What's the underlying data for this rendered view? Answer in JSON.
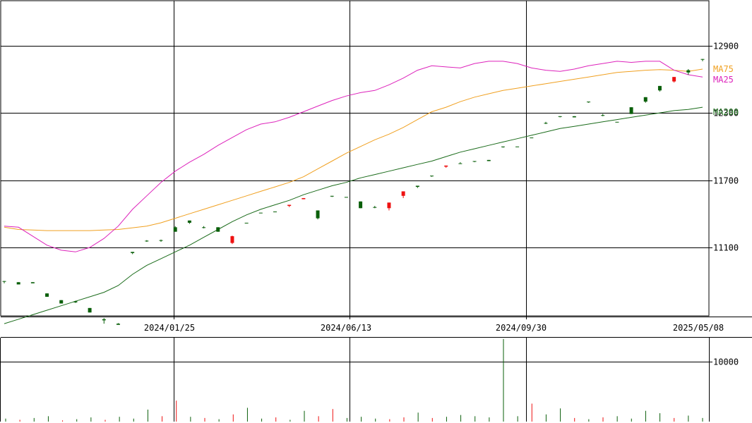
{
  "colors": {
    "up": "#0a5f0a",
    "down": "#ee1111",
    "ma25": "#dd22bb",
    "ma75": "#f0a020",
    "ma200": "#1a6b1a",
    "grid": "#000000"
  },
  "chart_data": {
    "type": "candlestick",
    "price_axis": {
      "ticks": [
        11100,
        11700,
        12300,
        12900
      ],
      "range": [
        10490,
        13300
      ]
    },
    "date_axis": {
      "ticks": [
        "2024/01/25",
        "2024/06/13",
        "2024/09/30",
        "2025/05/08"
      ]
    },
    "volume_axis": {
      "ticks": [
        10000
      ],
      "range": [
        0,
        14000
      ]
    },
    "legend": [
      {
        "key": "ma75",
        "label": "MA75"
      },
      {
        "key": "ma25",
        "label": "MA25"
      },
      {
        "key": "ma200",
        "label": "MA200"
      }
    ],
    "candles": [
      [
        10800,
        10800,
        10800,
        10780
      ],
      [
        10770,
        10790,
        10780,
        10790
      ],
      [
        10780,
        10790,
        10785,
        10790
      ],
      [
        10660,
        10690,
        10660,
        10690
      ],
      [
        10600,
        10630,
        10605,
        10630
      ],
      [
        10610,
        10620,
        10605,
        10625
      ],
      [
        10520,
        10560,
        10520,
        10560
      ],
      [
        10450,
        10460,
        10420,
        10470
      ],
      [
        10410,
        10420,
        10410,
        10425
      ],
      [
        11050,
        11060,
        11040,
        11060
      ],
      [
        11160,
        11160,
        11150,
        11165
      ],
      [
        11160,
        11165,
        11150,
        11170
      ],
      [
        11240,
        11280,
        11240,
        11290
      ],
      [
        11320,
        11340,
        11310,
        11340
      ],
      [
        11280,
        11280,
        11270,
        11290
      ],
      [
        11240,
        11280,
        11240,
        11280
      ],
      [
        11200,
        11140,
        11130,
        11205
      ],
      [
        11320,
        11320,
        11320,
        11320
      ],
      [
        11410,
        11410,
        11410,
        11410
      ],
      [
        11420,
        11420,
        11420,
        11420
      ],
      [
        11480,
        11470,
        11460,
        11480
      ],
      [
        11540,
        11530,
        11530,
        11540
      ],
      [
        11360,
        11430,
        11350,
        11430
      ],
      [
        11560,
        11560,
        11550,
        11560
      ],
      [
        11550,
        11550,
        11550,
        11550
      ],
      [
        11450,
        11510,
        11450,
        11510
      ],
      [
        11460,
        11460,
        11450,
        11470
      ],
      [
        11500,
        11450,
        11430,
        11500
      ],
      [
        11600,
        11560,
        11540,
        11600
      ],
      [
        11640,
        11650,
        11630,
        11650
      ],
      [
        11740,
        11740,
        11730,
        11740
      ],
      [
        11830,
        11820,
        11810,
        11830
      ],
      [
        11850,
        11850,
        11850,
        11860
      ],
      [
        11870,
        11870,
        11860,
        11870
      ],
      [
        11870,
        11880,
        11870,
        11880
      ],
      [
        12000,
        12000,
        11990,
        12000
      ],
      [
        12000,
        12000,
        12000,
        12000
      ],
      [
        12080,
        12080,
        12080,
        12080
      ],
      [
        12210,
        12210,
        12200,
        12220
      ],
      [
        12270,
        12270,
        12260,
        12270
      ],
      [
        12260,
        12270,
        12260,
        12270
      ],
      [
        12400,
        12400,
        12390,
        12400
      ],
      [
        12280,
        12280,
        12270,
        12290
      ],
      [
        12220,
        12220,
        12220,
        12220
      ],
      [
        12290,
        12350,
        12290,
        12350
      ],
      [
        12400,
        12440,
        12390,
        12440
      ],
      [
        12500,
        12540,
        12490,
        12540
      ],
      [
        12620,
        12580,
        12570,
        12620
      ],
      [
        12660,
        12680,
        12640,
        12690
      ],
      [
        12780,
        12780,
        12760,
        12780
      ]
    ],
    "ma25": [
      11290,
      11280,
      11200,
      11120,
      11075,
      11060,
      11100,
      11180,
      11290,
      11440,
      11560,
      11680,
      11780,
      11860,
      11930,
      12010,
      12080,
      12150,
      12200,
      12220,
      12260,
      12310,
      12360,
      12410,
      12450,
      12480,
      12500,
      12550,
      12610,
      12680,
      12720,
      12710,
      12700,
      12740,
      12760,
      12760,
      12740,
      12700,
      12680,
      12670,
      12690,
      12720,
      12740,
      12760,
      12750,
      12760,
      12760,
      12680,
      12640,
      12620
    ],
    "ma75": [
      11280,
      11260,
      11255,
      11250,
      11250,
      11250,
      11250,
      11255,
      11260,
      11275,
      11290,
      11320,
      11360,
      11400,
      11440,
      11480,
      11520,
      11560,
      11600,
      11640,
      11680,
      11730,
      11800,
      11870,
      11940,
      12000,
      12060,
      12110,
      12170,
      12240,
      12310,
      12350,
      12400,
      12440,
      12470,
      12500,
      12520,
      12540,
      12560,
      12580,
      12600,
      12620,
      12640,
      12660,
      12670,
      12680,
      12685,
      12680,
      12670,
      12690
    ],
    "ma200": [
      10420,
      10460,
      10500,
      10540,
      10580,
      10620,
      10660,
      10700,
      10760,
      10860,
      10940,
      11000,
      11060,
      11120,
      11190,
      11260,
      11330,
      11390,
      11440,
      11480,
      11520,
      11570,
      11610,
      11650,
      11680,
      11720,
      11750,
      11780,
      11810,
      11840,
      11870,
      11910,
      11950,
      11980,
      12010,
      12040,
      12070,
      12100,
      12130,
      12160,
      12180,
      12200,
      12220,
      12240,
      12260,
      12280,
      12300,
      12320,
      12330,
      12350
    ],
    "volume": [
      [
        500,
        "up"
      ],
      [
        300,
        "down"
      ],
      [
        600,
        "up"
      ],
      [
        900,
        "up"
      ],
      [
        200,
        "down"
      ],
      [
        400,
        "up"
      ],
      [
        700,
        "up"
      ],
      [
        300,
        "down"
      ],
      [
        800,
        "up"
      ],
      [
        500,
        "up"
      ],
      [
        2000,
        "up"
      ],
      [
        900,
        "down"
      ],
      [
        3500,
        "down"
      ],
      [
        800,
        "up"
      ],
      [
        600,
        "down"
      ],
      [
        400,
        "up"
      ],
      [
        1200,
        "down"
      ],
      [
        2300,
        "up"
      ],
      [
        500,
        "up"
      ],
      [
        700,
        "down"
      ],
      [
        300,
        "up"
      ],
      [
        1800,
        "up"
      ],
      [
        900,
        "down"
      ],
      [
        2100,
        "down"
      ],
      [
        600,
        "up"
      ],
      [
        800,
        "up"
      ],
      [
        500,
        "up"
      ],
      [
        400,
        "down"
      ],
      [
        700,
        "down"
      ],
      [
        1500,
        "up"
      ],
      [
        600,
        "down"
      ],
      [
        800,
        "up"
      ],
      [
        1100,
        "up"
      ],
      [
        900,
        "up"
      ],
      [
        700,
        "up"
      ],
      [
        13800,
        "up"
      ],
      [
        900,
        "up"
      ],
      [
        3000,
        "down"
      ],
      [
        1200,
        "up"
      ],
      [
        2200,
        "up"
      ],
      [
        600,
        "down"
      ],
      [
        400,
        "up"
      ],
      [
        700,
        "down"
      ],
      [
        900,
        "up"
      ],
      [
        500,
        "up"
      ],
      [
        1800,
        "up"
      ],
      [
        1400,
        "up"
      ],
      [
        600,
        "down"
      ],
      [
        1000,
        "up"
      ],
      [
        600,
        "up"
      ]
    ]
  }
}
